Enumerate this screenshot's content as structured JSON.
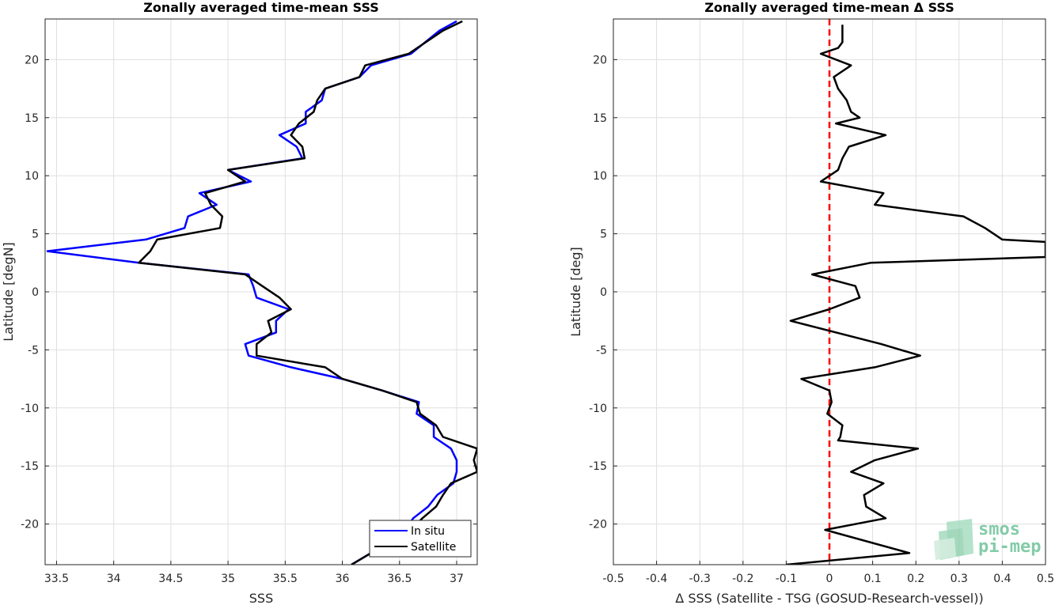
{
  "chart_data": [
    {
      "type": "line",
      "title": "Zonally averaged time-mean SSS",
      "xlabel": "SSS",
      "ylabel": "Latitude [degN]",
      "xlim": [
        33.4,
        37.18
      ],
      "ylim": [
        -23.5,
        23.5
      ],
      "xticks": [
        "33.5",
        "34",
        "34.5",
        "35",
        "35.5",
        "36",
        "36.5",
        "37"
      ],
      "yticks": [
        "-20",
        "-15",
        "-10",
        "-5",
        "0",
        "5",
        "10",
        "15",
        "20"
      ],
      "grid": true,
      "legend": {
        "placement": "bottom-right",
        "entries": [
          "In situ",
          "Satellite"
        ]
      },
      "series": [
        {
          "name": "In situ",
          "color": "#0000ff",
          "points": [
            [
              37.0,
              23.3
            ],
            [
              36.85,
              22.5
            ],
            [
              36.6,
              20.5
            ],
            [
              36.25,
              19.5
            ],
            [
              36.15,
              18.5
            ],
            [
              35.85,
              17.5
            ],
            [
              35.82,
              16.5
            ],
            [
              35.68,
              15.5
            ],
            [
              35.68,
              14.5
            ],
            [
              35.45,
              13.5
            ],
            [
              35.6,
              12.5
            ],
            [
              35.65,
              11.5
            ],
            [
              35.0,
              10.5
            ],
            [
              35.2,
              9.5
            ],
            [
              34.75,
              8.5
            ],
            [
              34.9,
              7.5
            ],
            [
              34.65,
              6.5
            ],
            [
              34.62,
              5.5
            ],
            [
              34.28,
              4.5
            ],
            [
              33.42,
              3.5
            ],
            [
              34.22,
              2.5
            ],
            [
              35.18,
              1.5
            ],
            [
              35.22,
              0.5
            ],
            [
              35.25,
              -0.5
            ],
            [
              35.53,
              -1.5
            ],
            [
              35.42,
              -2.5
            ],
            [
              35.42,
              -3.5
            ],
            [
              35.15,
              -4.5
            ],
            [
              35.18,
              -5.5
            ],
            [
              35.55,
              -6.5
            ],
            [
              36.0,
              -7.5
            ],
            [
              36.35,
              -8.5
            ],
            [
              36.67,
              -9.5
            ],
            [
              36.65,
              -10.5
            ],
            [
              36.8,
              -11.5
            ],
            [
              36.8,
              -12.5
            ],
            [
              36.95,
              -13.5
            ],
            [
              37.0,
              -14.5
            ],
            [
              37.0,
              -15.5
            ],
            [
              36.97,
              -16.5
            ],
            [
              36.83,
              -17.5
            ],
            [
              36.75,
              -18.5
            ],
            [
              36.62,
              -19.5
            ],
            [
              36.55,
              -20.5
            ],
            [
              36.43,
              -21.5
            ],
            [
              36.25,
              -22.5
            ],
            [
              36.08,
              -23.5
            ]
          ]
        },
        {
          "name": "Satellite",
          "color": "#000000",
          "points": [
            [
              37.05,
              23.3
            ],
            [
              36.88,
              22.5
            ],
            [
              36.58,
              20.5
            ],
            [
              36.2,
              19.5
            ],
            [
              36.15,
              18.5
            ],
            [
              35.85,
              17.5
            ],
            [
              35.78,
              16.5
            ],
            [
              35.75,
              15.5
            ],
            [
              35.62,
              14.5
            ],
            [
              35.55,
              13.5
            ],
            [
              35.65,
              12.5
            ],
            [
              35.67,
              11.5
            ],
            [
              35.0,
              10.5
            ],
            [
              35.15,
              9.5
            ],
            [
              34.8,
              8.5
            ],
            [
              34.85,
              7.5
            ],
            [
              34.95,
              6.5
            ],
            [
              34.93,
              5.5
            ],
            [
              34.38,
              4.5
            ],
            [
              34.32,
              3.5
            ],
            [
              34.22,
              2.5
            ],
            [
              35.15,
              1.5
            ],
            [
              35.3,
              0.5
            ],
            [
              35.45,
              -0.5
            ],
            [
              35.55,
              -1.5
            ],
            [
              35.35,
              -2.5
            ],
            [
              35.38,
              -3.5
            ],
            [
              35.25,
              -4.5
            ],
            [
              35.25,
              -5.5
            ],
            [
              35.85,
              -6.5
            ],
            [
              36.0,
              -7.5
            ],
            [
              36.35,
              -8.5
            ],
            [
              36.65,
              -9.5
            ],
            [
              36.68,
              -10.5
            ],
            [
              36.82,
              -11.5
            ],
            [
              36.88,
              -12.5
            ],
            [
              37.18,
              -13.5
            ],
            [
              37.15,
              -14.5
            ],
            [
              37.18,
              -15.5
            ],
            [
              36.95,
              -16.5
            ],
            [
              36.88,
              -17.5
            ],
            [
              36.82,
              -18.5
            ],
            [
              36.7,
              -19.5
            ],
            [
              36.6,
              -20.5
            ],
            [
              36.43,
              -21.5
            ],
            [
              36.25,
              -22.5
            ],
            [
              36.08,
              -23.5
            ]
          ]
        }
      ]
    },
    {
      "type": "line",
      "title": "Zonally averaged time-mean Δ SSS",
      "xlabel": "Δ SSS (Satellite - TSG (GOSUD-Research-vessel))",
      "ylabel": "Latitude [deg]",
      "xlim": [
        -0.5,
        0.5
      ],
      "ylim": [
        -23.5,
        23.5
      ],
      "xticks": [
        "-0.5",
        "-0.4",
        "-0.3",
        "-0.2",
        "-0.1",
        "0",
        "0.1",
        "0.2",
        "0.3",
        "0.4",
        "0.5"
      ],
      "yticks": [
        "-20",
        "-15",
        "-10",
        "-5",
        "0",
        "5",
        "10",
        "15",
        "20"
      ],
      "grid": true,
      "reference_line": {
        "x": 0,
        "color": "#ff0000",
        "style": "dashed"
      },
      "series": [
        {
          "color": "#000000",
          "points": [
            [
              0.03,
              23.0
            ],
            [
              0.03,
              21.5
            ],
            [
              0.02,
              21.0
            ],
            [
              -0.02,
              20.5
            ],
            [
              0.05,
              19.5
            ],
            [
              0.01,
              18.5
            ],
            [
              0.02,
              17.5
            ],
            [
              0.04,
              16.5
            ],
            [
              0.05,
              15.5
            ],
            [
              0.07,
              15.0
            ],
            [
              0.015,
              14.5
            ],
            [
              0.13,
              13.5
            ],
            [
              0.045,
              12.5
            ],
            [
              0.03,
              11.5
            ],
            [
              0.02,
              10.5
            ],
            [
              -0.02,
              9.5
            ],
            [
              0.125,
              8.5
            ],
            [
              0.105,
              7.5
            ],
            [
              0.31,
              6.5
            ],
            [
              0.36,
              5.5
            ],
            [
              0.4,
              4.5
            ],
            [
              0.5,
              4.3
            ],
            [
              0.5,
              3.0
            ],
            [
              0.095,
              2.5
            ],
            [
              -0.04,
              1.5
            ],
            [
              0.06,
              0.5
            ],
            [
              0.07,
              -0.5
            ],
            [
              0.0,
              -1.5
            ],
            [
              -0.09,
              -2.5
            ],
            [
              0.12,
              -4.5
            ],
            [
              0.21,
              -5.5
            ],
            [
              0.105,
              -6.5
            ],
            [
              -0.065,
              -7.5
            ],
            [
              0.0,
              -8.5
            ],
            [
              0.005,
              -9.5
            ],
            [
              -0.005,
              -10.5
            ],
            [
              0.03,
              -11.5
            ],
            [
              0.025,
              -12.5
            ],
            [
              0.02,
              -12.8
            ],
            [
              0.205,
              -13.5
            ],
            [
              0.105,
              -14.5
            ],
            [
              0.05,
              -15.5
            ],
            [
              0.125,
              -16.5
            ],
            [
              0.08,
              -17.5
            ],
            [
              0.085,
              -18.5
            ],
            [
              0.13,
              -19.5
            ],
            [
              -0.01,
              -20.5
            ],
            [
              0.185,
              -22.5
            ],
            [
              -0.1,
              -23.5
            ]
          ]
        }
      ]
    }
  ],
  "logo": {
    "line1": "smos",
    "line2": "pi-mep",
    "color": "#6fc39a"
  }
}
